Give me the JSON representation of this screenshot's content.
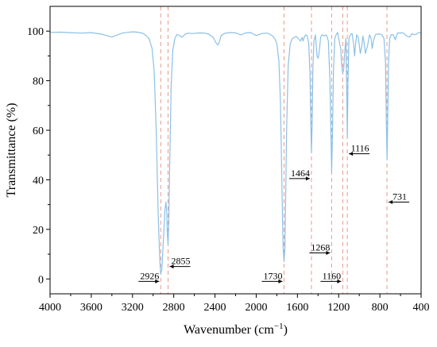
{
  "chart_data": {
    "type": "line",
    "xlabel": "Wavenumber (cm",
    "xlabel_sup": "−1",
    "xlabel_close": ")",
    "ylabel": "Transmittance (%)",
    "xlim": [
      4000,
      400
    ],
    "ylim": [
      -6,
      110
    ],
    "x_reversed": true,
    "xticks": [
      4000,
      3600,
      3200,
      2800,
      2400,
      2000,
      1600,
      1200,
      800,
      400
    ],
    "yticks": [
      0,
      20,
      40,
      60,
      80,
      100
    ],
    "grid": false,
    "series_color": "#8cc0e6",
    "marker_line_color": "#e89a8c",
    "series": [
      {
        "x": [
          4000,
          3900,
          3800,
          3700,
          3600,
          3500,
          3450,
          3400,
          3350,
          3300,
          3250,
          3200,
          3150,
          3100,
          3070,
          3040,
          3010,
          2990,
          2970,
          2950,
          2935,
          2926,
          2915,
          2900,
          2885,
          2875,
          2868,
          2862,
          2855,
          2848,
          2840,
          2825,
          2810,
          2790,
          2770,
          2750,
          2720,
          2690,
          2660,
          2620,
          2580,
          2540,
          2500,
          2460,
          2420,
          2390,
          2370,
          2360,
          2340,
          2300,
          2250,
          2200,
          2150,
          2100,
          2050,
          2000,
          1950,
          1900,
          1880,
          1860,
          1840,
          1820,
          1800,
          1780,
          1765,
          1755,
          1745,
          1738,
          1730,
          1722,
          1715,
          1705,
          1690,
          1670,
          1650,
          1630,
          1610,
          1590,
          1570,
          1555,
          1545,
          1535,
          1520,
          1505,
          1490,
          1478,
          1470,
          1464,
          1458,
          1450,
          1440,
          1425,
          1410,
          1398,
          1385,
          1375,
          1360,
          1340,
          1320,
          1300,
          1285,
          1275,
          1268,
          1260,
          1250,
          1238,
          1225,
          1210,
          1195,
          1180,
          1170,
          1160,
          1150,
          1140,
          1130,
          1122,
          1116,
          1110,
          1100,
          1085,
          1070,
          1055,
          1045,
          1035,
          1025,
          1010,
          990,
          975,
          965,
          955,
          940,
          920,
          900,
          885,
          875,
          860,
          840,
          820,
          800,
          780,
          760,
          745,
          738,
          731,
          724,
          716,
          705,
          690,
          670,
          650,
          630,
          600,
          570,
          540,
          510,
          490,
          470,
          450,
          420,
          400
        ],
        "y": [
          99.5,
          99.6,
          99.4,
          99.2,
          99.4,
          98.8,
          98.2,
          97.6,
          98.4,
          99.2,
          99.5,
          99.7,
          99.6,
          99.1,
          98.3,
          97.0,
          93.0,
          84.0,
          60.0,
          25.0,
          7.0,
          2.0,
          4.0,
          16.0,
          28.0,
          31.0,
          27.0,
          18.0,
          14.0,
          22.0,
          45.0,
          78.0,
          92.0,
          97.0,
          98.6,
          98.4,
          97.5,
          98.8,
          99.2,
          99.0,
          99.2,
          99.3,
          99.2,
          98.8,
          97.6,
          95.3,
          94.4,
          95.3,
          98.2,
          99.2,
          99.4,
          99.3,
          98.5,
          99.3,
          99.4,
          98.2,
          99.0,
          99.2,
          99.0,
          98.5,
          98.0,
          97.0,
          95.0,
          88.0,
          72.0,
          50.0,
          25.0,
          12.0,
          7.0,
          12.0,
          30.0,
          60.0,
          86.0,
          95.0,
          97.0,
          97.5,
          97.8,
          97.0,
          96.0,
          97.5,
          96.0,
          97.5,
          98.5,
          98.0,
          95.0,
          82.0,
          62.0,
          51.0,
          62.0,
          85.0,
          96.0,
          98.5,
          90.0,
          89.0,
          93.0,
          97.5,
          98.6,
          98.0,
          98.5,
          96.0,
          80.0,
          58.0,
          43.0,
          58.0,
          84.0,
          97.0,
          98.5,
          99.5,
          96.0,
          93.0,
          86.0,
          83.0,
          85.0,
          92.0,
          97.0,
          78.0,
          57.0,
          78.0,
          97.0,
          98.6,
          99.0,
          95.0,
          90.0,
          95.0,
          98.5,
          97.5,
          91.0,
          94.0,
          98.0,
          96.0,
          91.0,
          94.0,
          98.5,
          97.0,
          93.0,
          96.5,
          98.7,
          98.8,
          98.9,
          98.5,
          97.0,
          87.0,
          65.0,
          48.0,
          65.0,
          87.0,
          97.0,
          98.6,
          98.5,
          96.5,
          99.2,
          99.3,
          99.2,
          98.0,
          97.6,
          99.0,
          98.6,
          98.7,
          99.5,
          99.3
        ]
      }
    ],
    "marker_lines": [
      2926,
      2855,
      1730,
      1464,
      1268,
      1160,
      1116,
      731
    ],
    "annotations": [
      {
        "label": "2926",
        "x": 2926,
        "y": -1,
        "arrow": "right"
      },
      {
        "label": "2855",
        "x": 2855,
        "y": 5,
        "arrow": "left"
      },
      {
        "label": "1730",
        "x": 1730,
        "y": -1,
        "arrow": "right"
      },
      {
        "label": "1464",
        "x": 1464,
        "y": 40.5,
        "arrow": "right"
      },
      {
        "label": "1268",
        "x": 1268,
        "y": 10.5,
        "arrow": "right"
      },
      {
        "label": "1160",
        "x": 1160,
        "y": -1,
        "arrow": "right"
      },
      {
        "label": "1116",
        "x": 1116,
        "y": 50.5,
        "arrow": "left"
      },
      {
        "label": "731",
        "x": 731,
        "y": 31,
        "arrow": "left"
      }
    ]
  }
}
